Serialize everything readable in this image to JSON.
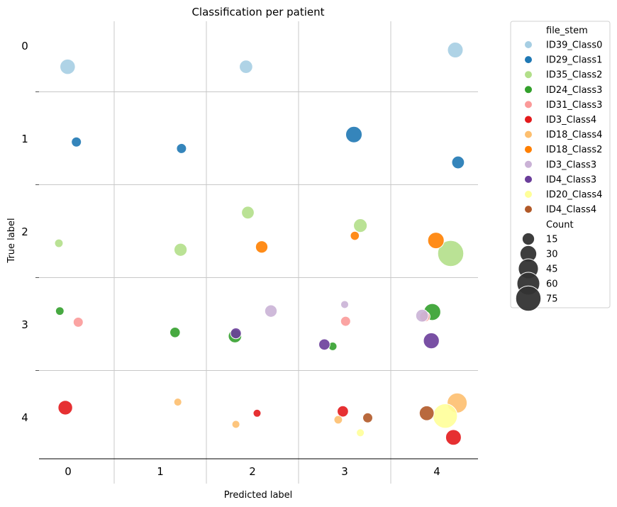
{
  "chart_data": {
    "type": "scatter",
    "title": "Classification per patient",
    "xlabel": "Predicted label",
    "ylabel": "True label",
    "x_ticks": [
      "0",
      "1",
      "2",
      "3",
      "4"
    ],
    "y_ticks": [
      "0",
      "1",
      "2",
      "3",
      "4"
    ],
    "xlim": [
      -0.45,
      4.45
    ],
    "ylim": [
      -0.5,
      4.45
    ],
    "grid": true,
    "legend_position": "outside-right",
    "legend_hue_title": "file_stem",
    "legend_size_title": "Count",
    "size_legend_values": [
      15,
      30,
      45,
      60,
      75
    ],
    "series": [
      {
        "name": "ID39_Class0",
        "color": "#a6cee3",
        "points": [
          {
            "x": -0.005,
            "y": 0.23,
            "count": 25
          },
          {
            "x": 1.93,
            "y": 0.23,
            "count": 18
          },
          {
            "x": 4.2,
            "y": 0.05,
            "count": 26
          }
        ]
      },
      {
        "name": "ID29_Class1",
        "color": "#1f78b4",
        "points": [
          {
            "x": 0.09,
            "y": 1.04,
            "count": 9
          },
          {
            "x": 1.23,
            "y": 1.11,
            "count": 9
          },
          {
            "x": 3.1,
            "y": 0.96,
            "count": 29
          },
          {
            "x": 4.23,
            "y": 1.26,
            "count": 16
          }
        ]
      },
      {
        "name": "ID35_Class2",
        "color": "#b2df8a",
        "points": [
          {
            "x": -0.1,
            "y": 2.13,
            "count": 6
          },
          {
            "x": 1.22,
            "y": 2.2,
            "count": 17
          },
          {
            "x": 1.95,
            "y": 1.8,
            "count": 16
          },
          {
            "x": 3.17,
            "y": 1.94,
            "count": 19
          },
          {
            "x": 4.15,
            "y": 2.24,
            "count": 80
          }
        ]
      },
      {
        "name": "ID24_Class3",
        "color": "#33a02c",
        "points": [
          {
            "x": -0.09,
            "y": 2.86,
            "count": 6
          },
          {
            "x": 1.16,
            "y": 3.09,
            "count": 10
          },
          {
            "x": 1.81,
            "y": 3.13,
            "count": 18
          },
          {
            "x": 2.87,
            "y": 3.24,
            "count": 6
          },
          {
            "x": 3.95,
            "y": 2.87,
            "count": 31
          }
        ]
      },
      {
        "name": "ID31_Class3",
        "color": "#fb9a99",
        "points": [
          {
            "x": 0.11,
            "y": 2.98,
            "count": 9
          },
          {
            "x": 3.01,
            "y": 2.97,
            "count": 9
          },
          {
            "x": 3.87,
            "y": 2.92,
            "count": 10
          }
        ]
      },
      {
        "name": "ID3_Class4",
        "color": "#e31a1c",
        "points": [
          {
            "x": -0.03,
            "y": 3.9,
            "count": 22
          },
          {
            "x": 2.05,
            "y": 3.96,
            "count": 5
          },
          {
            "x": 2.98,
            "y": 3.94,
            "count": 12
          },
          {
            "x": 4.18,
            "y": 4.22,
            "count": 26
          }
        ]
      },
      {
        "name": "ID18_Class4",
        "color": "#fdbf6f",
        "points": [
          {
            "x": 1.19,
            "y": 3.84,
            "count": 5
          },
          {
            "x": 1.82,
            "y": 4.08,
            "count": 5
          },
          {
            "x": 2.93,
            "y": 4.03,
            "count": 6
          },
          {
            "x": 4.22,
            "y": 3.85,
            "count": 45
          }
        ]
      },
      {
        "name": "ID18_Class2",
        "color": "#ff7f00",
        "points": [
          {
            "x": 2.1,
            "y": 2.17,
            "count": 15
          },
          {
            "x": 3.11,
            "y": 2.05,
            "count": 7
          },
          {
            "x": 3.99,
            "y": 2.1,
            "count": 29
          }
        ]
      },
      {
        "name": "ID3_Class3",
        "color": "#cab2d6",
        "points": [
          {
            "x": 2.2,
            "y": 2.86,
            "count": 15
          },
          {
            "x": 3.0,
            "y": 2.79,
            "count": 5
          },
          {
            "x": 3.84,
            "y": 2.91,
            "count": 16
          }
        ]
      },
      {
        "name": "ID4_Class3",
        "color": "#6a3d9a",
        "points": [
          {
            "x": 1.82,
            "y": 3.1,
            "count": 11
          },
          {
            "x": 2.78,
            "y": 3.22,
            "count": 12
          },
          {
            "x": 3.94,
            "y": 3.18,
            "count": 27
          }
        ]
      },
      {
        "name": "ID20_Class4",
        "color": "#ffff99",
        "points": [
          {
            "x": 3.17,
            "y": 4.17,
            "count": 5
          },
          {
            "x": 4.09,
            "y": 3.99,
            "count": 70
          }
        ]
      },
      {
        "name": "ID4_Class4",
        "color": "#b15928",
        "points": [
          {
            "x": 3.25,
            "y": 4.01,
            "count": 9
          },
          {
            "x": 3.89,
            "y": 3.96,
            "count": 23
          }
        ]
      }
    ]
  }
}
